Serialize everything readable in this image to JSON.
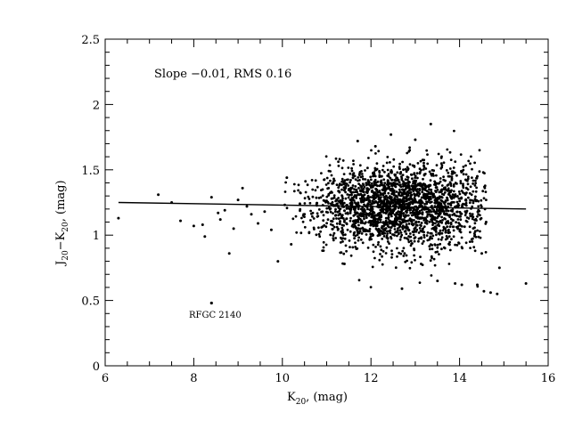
{
  "chart_data": {
    "type": "scatter",
    "title": "",
    "xlabel": {
      "main": "K",
      "sub": "20",
      "rest": ", (mag)"
    },
    "ylabel": {
      "p1": "J",
      "s1": "20",
      "p2": "−K",
      "s2": "20",
      "p3": ", (mag)"
    },
    "xlim": [
      6,
      16
    ],
    "ylim": [
      0,
      2.5
    ],
    "x_ticks": [
      "6",
      "8",
      "10",
      "12",
      "14",
      "16"
    ],
    "y_ticks": [
      "0",
      "0.5",
      "1",
      "1.5",
      "2",
      "2.5"
    ],
    "x_tick_values": [
      6,
      8,
      10,
      12,
      14,
      16
    ],
    "y_tick_values": [
      0,
      0.5,
      1,
      1.5,
      2,
      2.5
    ],
    "grid": false,
    "fit_line": {
      "x": [
        6.3,
        15.5
      ],
      "y": [
        1.25,
        1.2
      ]
    },
    "annotations": {
      "slope_text": "Slope  −0.01,  RMS  0.16",
      "outlier_label": "RFGC 2140"
    },
    "outlier_point": {
      "x": 8.4,
      "y": 0.48
    },
    "sparse_points": [
      [
        6.3,
        1.13
      ],
      [
        7.2,
        1.31
      ],
      [
        7.5,
        1.25
      ],
      [
        7.7,
        1.11
      ],
      [
        8.0,
        1.07
      ],
      [
        8.2,
        1.08
      ],
      [
        8.25,
        0.99
      ],
      [
        8.4,
        1.29
      ],
      [
        8.55,
        1.17
      ],
      [
        8.6,
        1.12
      ],
      [
        8.7,
        1.19
      ],
      [
        8.8,
        0.86
      ],
      [
        8.9,
        1.05
      ],
      [
        9.0,
        1.27
      ],
      [
        9.1,
        1.36
      ],
      [
        9.2,
        1.22
      ],
      [
        9.3,
        1.16
      ],
      [
        9.45,
        1.09
      ],
      [
        9.6,
        1.18
      ],
      [
        9.75,
        1.04
      ],
      [
        9.9,
        0.8
      ],
      [
        10.1,
        1.44
      ],
      [
        10.2,
        0.93
      ],
      [
        14.4,
        0.62
      ],
      [
        14.55,
        0.57
      ],
      [
        14.7,
        0.56
      ],
      [
        14.85,
        0.55
      ],
      [
        15.5,
        0.63
      ],
      [
        14.9,
        0.75
      ],
      [
        14.5,
        0.86
      ],
      [
        14.4,
        1.45
      ],
      [
        14.6,
        1.1
      ],
      [
        11.7,
        1.72
      ],
      [
        12.1,
        1.68
      ],
      [
        13.0,
        1.73
      ],
      [
        13.35,
        1.85
      ],
      [
        12.45,
        1.77
      ],
      [
        12.7,
        0.59
      ],
      [
        13.5,
        0.65
      ],
      [
        13.9,
        0.63
      ],
      [
        14.05,
        0.62
      ],
      [
        11.4,
        0.78
      ]
    ],
    "cloud": {
      "n": 2200,
      "x_range": [
        10.0,
        14.6
      ],
      "x_center": 12.6,
      "x_spread": 1.05,
      "y_center": 1.22,
      "y_spread": 0.16
    }
  }
}
